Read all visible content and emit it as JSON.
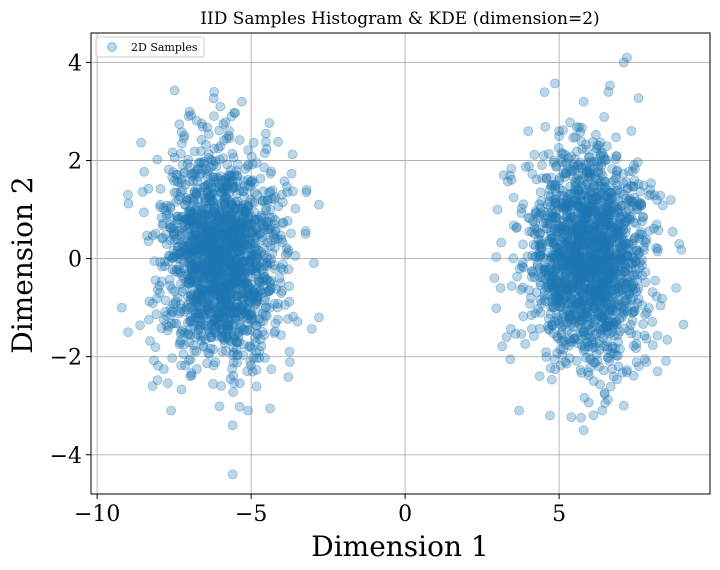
{
  "chart_data": {
    "type": "scatter",
    "title": "IID Samples Histogram & KDE (dimension=2)",
    "xlabel": "Dimension 1",
    "ylabel": "Dimension 2",
    "xlim": [
      -10.2,
      9.9
    ],
    "ylim": [
      -4.8,
      4.6
    ],
    "xticks": [
      -10,
      -5,
      0,
      5
    ],
    "xtick_labels": [
      "−10",
      "−5",
      "0",
      "5"
    ],
    "yticks": [
      -4,
      -2,
      0,
      2,
      4
    ],
    "ytick_labels": [
      "−4",
      "−2",
      "0",
      "2",
      "4"
    ],
    "grid": true,
    "legend": {
      "placement": "top-left",
      "entries": [
        "2D Samples"
      ]
    },
    "marker_color": "#1f77b4",
    "marker_alpha": 0.3,
    "series": [
      {
        "name": "2D Samples",
        "clusters": [
          {
            "center": [
              -6.0,
              0.0
            ],
            "std": [
              0.95,
              1.05
            ],
            "count": 1800
          },
          {
            "center": [
              6.0,
              0.0
            ],
            "std": [
              0.95,
              1.05
            ],
            "count": 1800
          }
        ],
        "notable_points": [
          [
            -5.6,
            -4.4
          ],
          [
            -5.6,
            -3.4
          ],
          [
            -7.6,
            -3.1
          ],
          [
            -5.1,
            -3.1
          ],
          [
            -8.2,
            -2.6
          ],
          [
            -6.2,
            3.4
          ],
          [
            -5.3,
            3.2
          ],
          [
            -7.0,
            3.0
          ],
          [
            -6.0,
            3.1
          ],
          [
            -9.0,
            1.3
          ],
          [
            -9.2,
            -1.0
          ],
          [
            -9.0,
            -1.5
          ],
          [
            -2.8,
            1.1
          ],
          [
            -2.8,
            -1.2
          ],
          [
            -3.2,
            1.4
          ],
          [
            7.2,
            4.1
          ],
          [
            7.1,
            4.0
          ],
          [
            6.6,
            3.4
          ],
          [
            5.8,
            3.2
          ],
          [
            5.0,
            2.6
          ],
          [
            3.0,
            1.0
          ],
          [
            2.9,
            -0.4
          ],
          [
            3.1,
            -0.6
          ],
          [
            8.9,
            0.3
          ],
          [
            8.8,
            -0.6
          ],
          [
            8.2,
            -2.3
          ],
          [
            7.1,
            -3.0
          ],
          [
            6.4,
            -3.1
          ],
          [
            5.8,
            -3.5
          ],
          [
            4.7,
            -3.2
          ],
          [
            3.7,
            -3.1
          ],
          [
            3.3,
            -1.6
          ],
          [
            3.2,
            1.7
          ],
          [
            4.5,
            2.1
          ],
          [
            7.6,
            1.1
          ]
        ]
      }
    ]
  }
}
